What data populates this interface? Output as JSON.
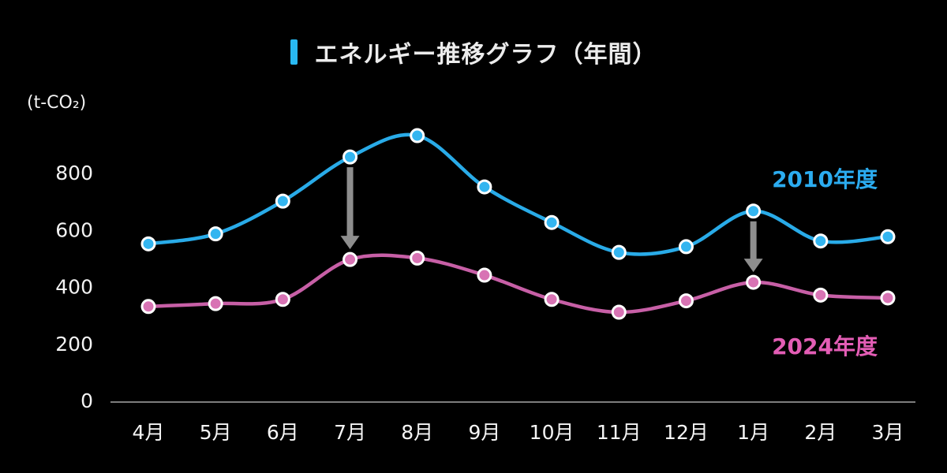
{
  "title": {
    "text": "エネルギー推移グラフ（年間）",
    "accent_color": "#29b9f2"
  },
  "y_axis": {
    "unit": "(t-CO₂)",
    "ticks": [
      0,
      200,
      400,
      600,
      800
    ],
    "tick_color": "#f2f2f2",
    "axis_line_color": "#7d7d7d"
  },
  "chart_data": {
    "type": "line",
    "title": "エネルギー推移グラフ（年間）",
    "xlabel": "",
    "ylabel": "(t-CO₂)",
    "ylim": [
      0,
      1000
    ],
    "grid": false,
    "legend_position": "inline-right",
    "categories": [
      "4月",
      "5月",
      "6月",
      "7月",
      "8月",
      "9月",
      "10月",
      "11月",
      "12月",
      "1月",
      "2月",
      "3月"
    ],
    "series": [
      {
        "name": "2010年度",
        "color": "#29abe8",
        "dot_color": "#33b5f0",
        "label_color": "#2bacf0",
        "values": [
          550,
          585,
          700,
          855,
          930,
          750,
          625,
          520,
          540,
          665,
          560,
          575
        ]
      },
      {
        "name": "2024年度",
        "color": "#c75fa6",
        "dot_color": "#d873b4",
        "label_color": "#e35db5",
        "values": [
          330,
          340,
          355,
          495,
          500,
          440,
          355,
          310,
          350,
          415,
          370,
          360
        ]
      }
    ]
  },
  "annotations": {
    "arrow_color": "#8e8e8e",
    "arrows": [
      {
        "category": "7月",
        "index": 3,
        "from_series": 0,
        "to_series": 1
      },
      {
        "category": "1月",
        "index": 9,
        "from_series": 0,
        "to_series": 1
      }
    ]
  }
}
